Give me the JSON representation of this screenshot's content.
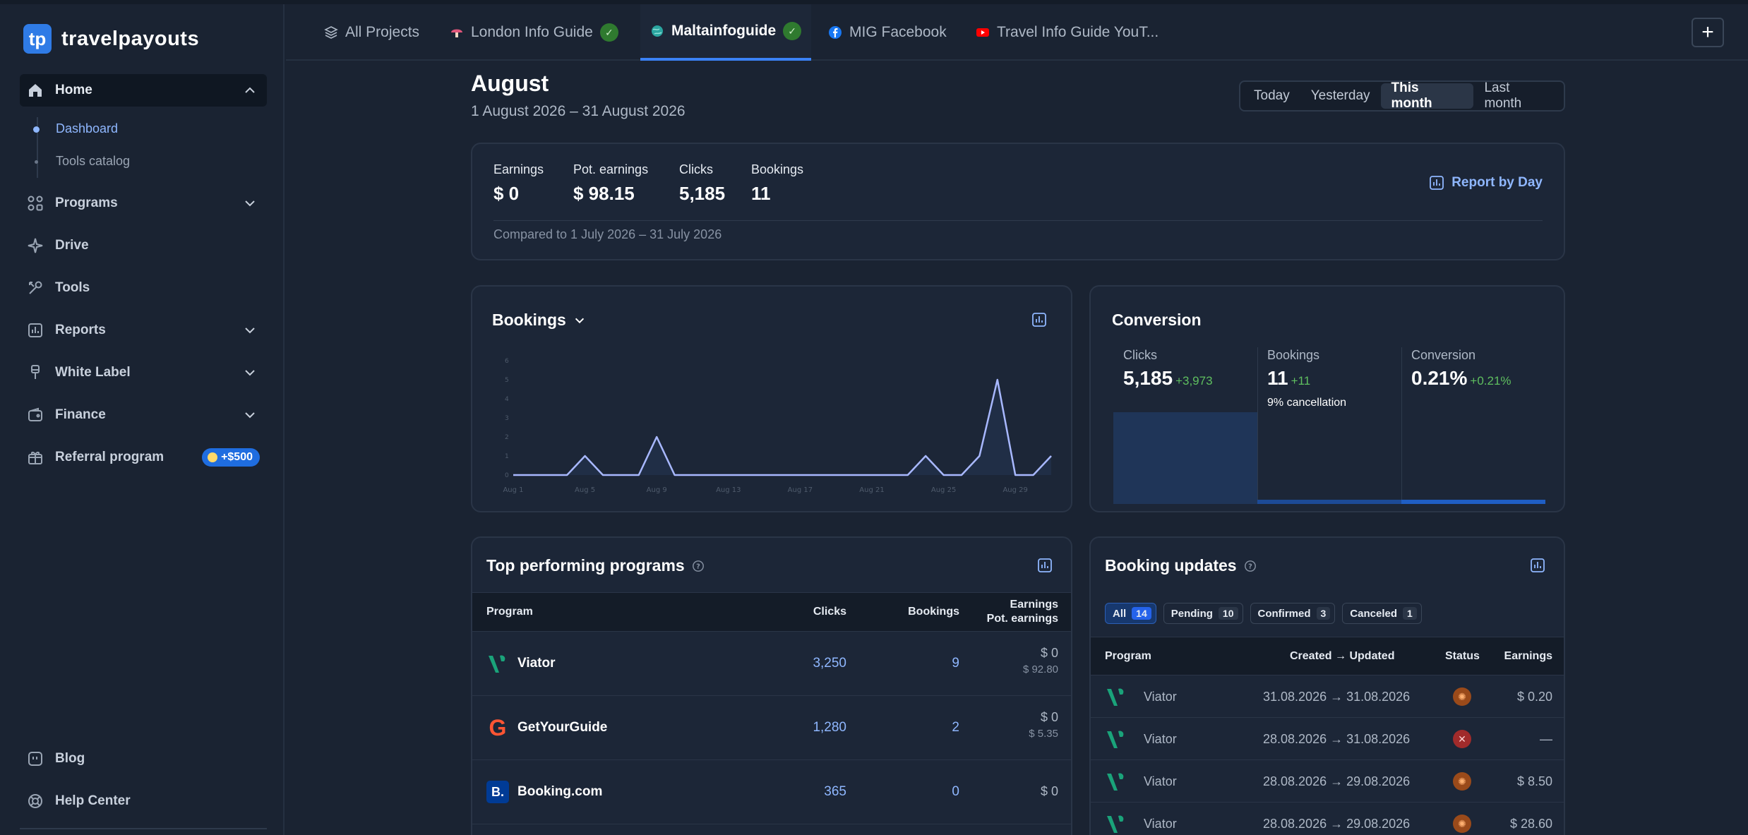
{
  "brand": {
    "name": "travelpayouts"
  },
  "sidebar": {
    "home": "Home",
    "dashboard": "Dashboard",
    "tools_catalog": "Tools catalog",
    "programs": "Programs",
    "drive": "Drive",
    "tools": "Tools",
    "reports": "Reports",
    "white_label": "White Label",
    "finance": "Finance",
    "referral": "Referral program",
    "referral_badge": "+$500",
    "blog": "Blog",
    "help_center": "Help Center"
  },
  "tabs": [
    {
      "label": "All Projects"
    },
    {
      "label": "London Info Guide"
    },
    {
      "label": "Maltainfoguide"
    },
    {
      "label": "MIG Facebook"
    },
    {
      "label": "Travel Info Guide YouT..."
    }
  ],
  "header": {
    "title": "August",
    "range": "1 August 2026 – 31 August 2026",
    "periods": [
      "Today",
      "Yesterday",
      "This month",
      "Last month"
    ],
    "active_period": "This month"
  },
  "summary": {
    "earnings_label": "Earnings",
    "earnings": "$ 0",
    "pot_label": "Pot. earnings",
    "pot": "$ 98.15",
    "clicks_label": "Clicks",
    "clicks": "5,185",
    "bookings_label": "Bookings",
    "bookings": "11",
    "compared": "Compared to 1 July 2026 – 31 July 2026",
    "report_link": "Report by Day"
  },
  "bookings_card": {
    "title": "Bookings"
  },
  "chart_data": {
    "type": "line",
    "title": "Bookings",
    "x": [
      "Aug 1",
      "Aug 2",
      "Aug 3",
      "Aug 4",
      "Aug 5",
      "Aug 6",
      "Aug 7",
      "Aug 8",
      "Aug 9",
      "Aug 10",
      "Aug 11",
      "Aug 12",
      "Aug 13",
      "Aug 14",
      "Aug 15",
      "Aug 16",
      "Aug 17",
      "Aug 18",
      "Aug 19",
      "Aug 20",
      "Aug 21",
      "Aug 22",
      "Aug 23",
      "Aug 24",
      "Aug 25",
      "Aug 26",
      "Aug 27",
      "Aug 28",
      "Aug 29",
      "Aug 30",
      "Aug 31"
    ],
    "values": [
      0,
      0,
      0,
      0,
      1,
      0,
      0,
      0,
      2,
      0,
      0,
      0,
      0,
      0,
      0,
      0,
      0,
      0,
      0,
      0,
      0,
      0,
      0,
      1,
      0,
      0,
      1,
      5,
      0,
      0,
      1
    ],
    "xticks": [
      "Aug 1",
      "Aug 5",
      "Aug 9",
      "Aug 13",
      "Aug 17",
      "Aug 21",
      "Aug 25",
      "Aug 29"
    ],
    "yticks": [
      "0",
      "1",
      "2",
      "3",
      "4",
      "5",
      "6"
    ],
    "ylim": [
      0,
      6
    ],
    "color": "#a8b8ff"
  },
  "conversion": {
    "title": "Conversion",
    "clicks_label": "Clicks",
    "clicks": "5,185",
    "clicks_delta": "+3,973",
    "bookings_label": "Bookings",
    "bookings": "11",
    "bookings_delta": "+11",
    "cancellation": "9% cancellation",
    "conv_label": "Conversion",
    "conv": "0.21%",
    "conv_delta": "+0.21%"
  },
  "top_programs": {
    "title": "Top performing programs",
    "col_program": "Program",
    "col_clicks": "Clicks",
    "col_bookings": "Bookings",
    "col_earnings": "Earnings",
    "col_pot": "Pot. earnings",
    "rows": [
      {
        "name": "Viator",
        "clicks": "3,250",
        "bookings": "9",
        "earnings": "$ 0",
        "pot": "$ 92.80"
      },
      {
        "name": "GetYourGuide",
        "clicks": "1,280",
        "bookings": "2",
        "earnings": "$ 0",
        "pot": "$ 5.35"
      },
      {
        "name": "Booking.com",
        "clicks": "365",
        "bookings": "0",
        "earnings": "$ 0",
        "pot": ""
      }
    ]
  },
  "booking_updates": {
    "title": "Booking updates",
    "filters": [
      {
        "label": "All",
        "count": "14"
      },
      {
        "label": "Pending",
        "count": "10"
      },
      {
        "label": "Confirmed",
        "count": "3"
      },
      {
        "label": "Canceled",
        "count": "1"
      }
    ],
    "col_program": "Program",
    "col_dates": "Created → Updated",
    "col_status": "Status",
    "col_earnings": "Earnings",
    "rows": [
      {
        "name": "Viator",
        "dates": "31.08.2026 → 31.08.2026",
        "status": "pending",
        "earnings": "$ 0.20"
      },
      {
        "name": "Viator",
        "dates": "28.08.2026 → 31.08.2026",
        "status": "canceled",
        "earnings": "—"
      },
      {
        "name": "Viator",
        "dates": "28.08.2026 → 29.08.2026",
        "status": "pending",
        "earnings": "$ 8.50"
      },
      {
        "name": "Viator",
        "dates": "28.08.2026 → 29.08.2026",
        "status": "pending",
        "earnings": "$ 28.60"
      }
    ]
  }
}
